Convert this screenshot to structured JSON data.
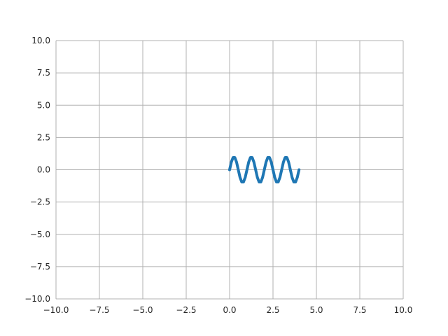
{
  "chart_data": {
    "type": "line",
    "title": "",
    "xlabel": "",
    "ylabel": "",
    "xlim": [
      -10,
      10
    ],
    "ylim": [
      -10,
      10
    ],
    "grid": true,
    "x_ticks": [
      -10,
      -7.5,
      -5,
      -2.5,
      0,
      2.5,
      5,
      7.5,
      10
    ],
    "y_ticks": [
      -10,
      -7.5,
      -5,
      -2.5,
      0,
      2.5,
      5,
      7.5,
      10
    ],
    "x_tick_labels": [
      "−10.0",
      "−7.5",
      "−5.0",
      "−2.5",
      "0.0",
      "2.5",
      "5.0",
      "7.5",
      "10.0"
    ],
    "y_tick_labels": [
      "−10.0",
      "−7.5",
      "−5.0",
      "−2.5",
      "0.0",
      "2.5",
      "5.0",
      "7.5",
      "10.0"
    ],
    "series": [
      {
        "color": "#1f77b4",
        "x": [
          0,
          0.1,
          0.2,
          0.3,
          0.4,
          0.5,
          0.6,
          0.7,
          0.8,
          0.9,
          1.0,
          1.1,
          1.2,
          1.3,
          1.4,
          1.5,
          1.6,
          1.7,
          1.8,
          1.9,
          2.0,
          2.1,
          2.2,
          2.3,
          2.4,
          2.5,
          2.6,
          2.7,
          2.8,
          2.9,
          3.0,
          3.1,
          3.2,
          3.3,
          3.4,
          3.5,
          3.6,
          3.7,
          3.8,
          3.9,
          4.0
        ],
        "y": [
          0,
          0.59,
          0.95,
          0.95,
          0.59,
          0,
          -0.59,
          -0.95,
          -0.95,
          -0.59,
          0,
          0.59,
          0.95,
          0.95,
          0.59,
          0,
          -0.59,
          -0.95,
          -0.95,
          -0.59,
          0,
          0.59,
          0.95,
          0.95,
          0.59,
          0,
          -0.59,
          -0.95,
          -0.95,
          -0.59,
          0,
          0.59,
          0.95,
          0.95,
          0.59,
          0,
          -0.59,
          -0.95,
          -0.95,
          -0.59,
          0
        ]
      }
    ]
  }
}
